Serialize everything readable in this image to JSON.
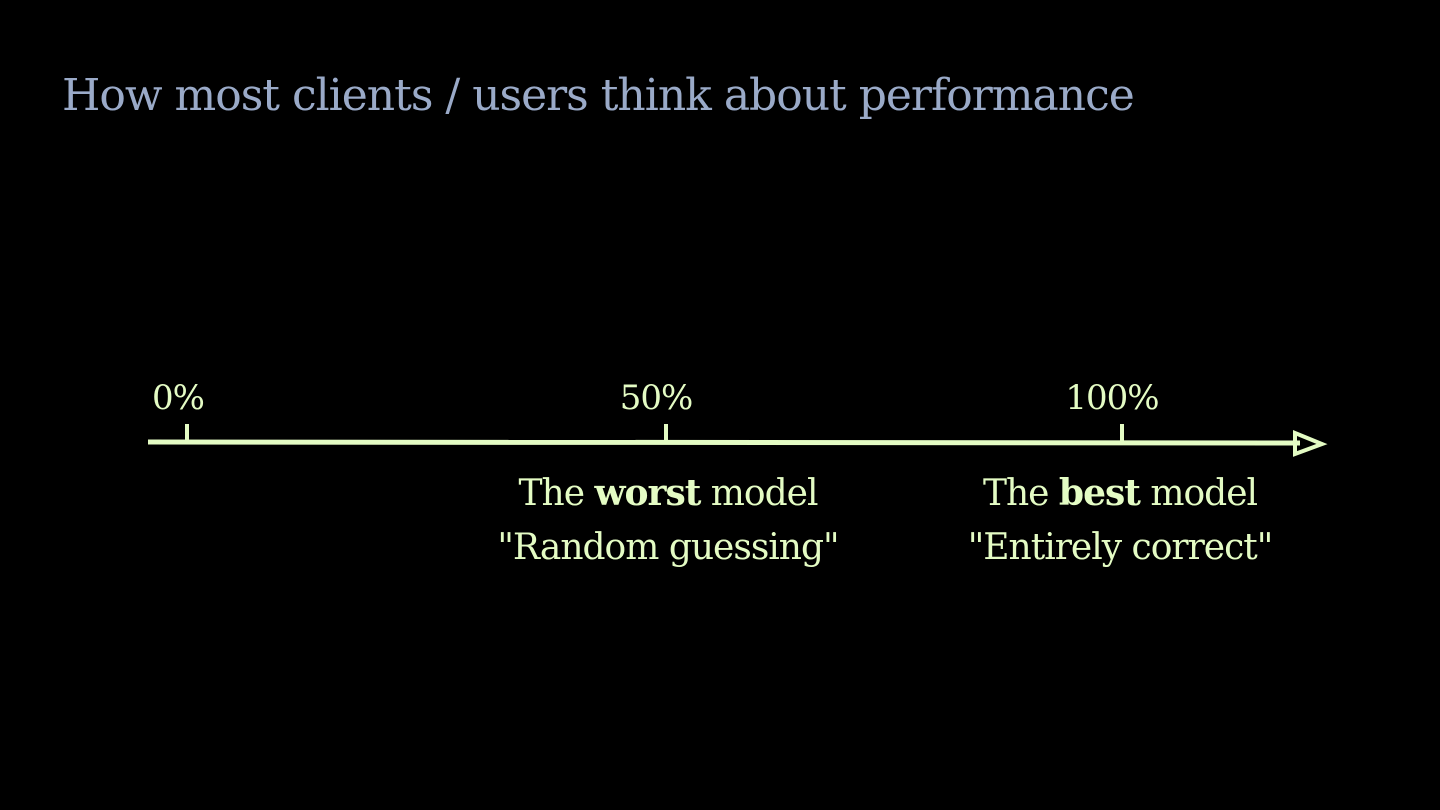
{
  "slide": {
    "title": "How most clients / users think about performance"
  },
  "colors": {
    "background": "#000000",
    "title": "#9aaac8",
    "axis": "#e4fcc4"
  },
  "axis": {
    "ticks": [
      {
        "label": "0%",
        "value": 0
      },
      {
        "label": "50%",
        "value": 50
      },
      {
        "label": "100%",
        "value": 100
      }
    ]
  },
  "captions": {
    "worst": {
      "prefix": "The",
      "emphasis": "worst",
      "suffix": "model",
      "quote": "\"Random guessing\""
    },
    "best": {
      "prefix": "The",
      "emphasis": "best",
      "suffix": "model",
      "quote": "\"Entirely correct\""
    }
  }
}
